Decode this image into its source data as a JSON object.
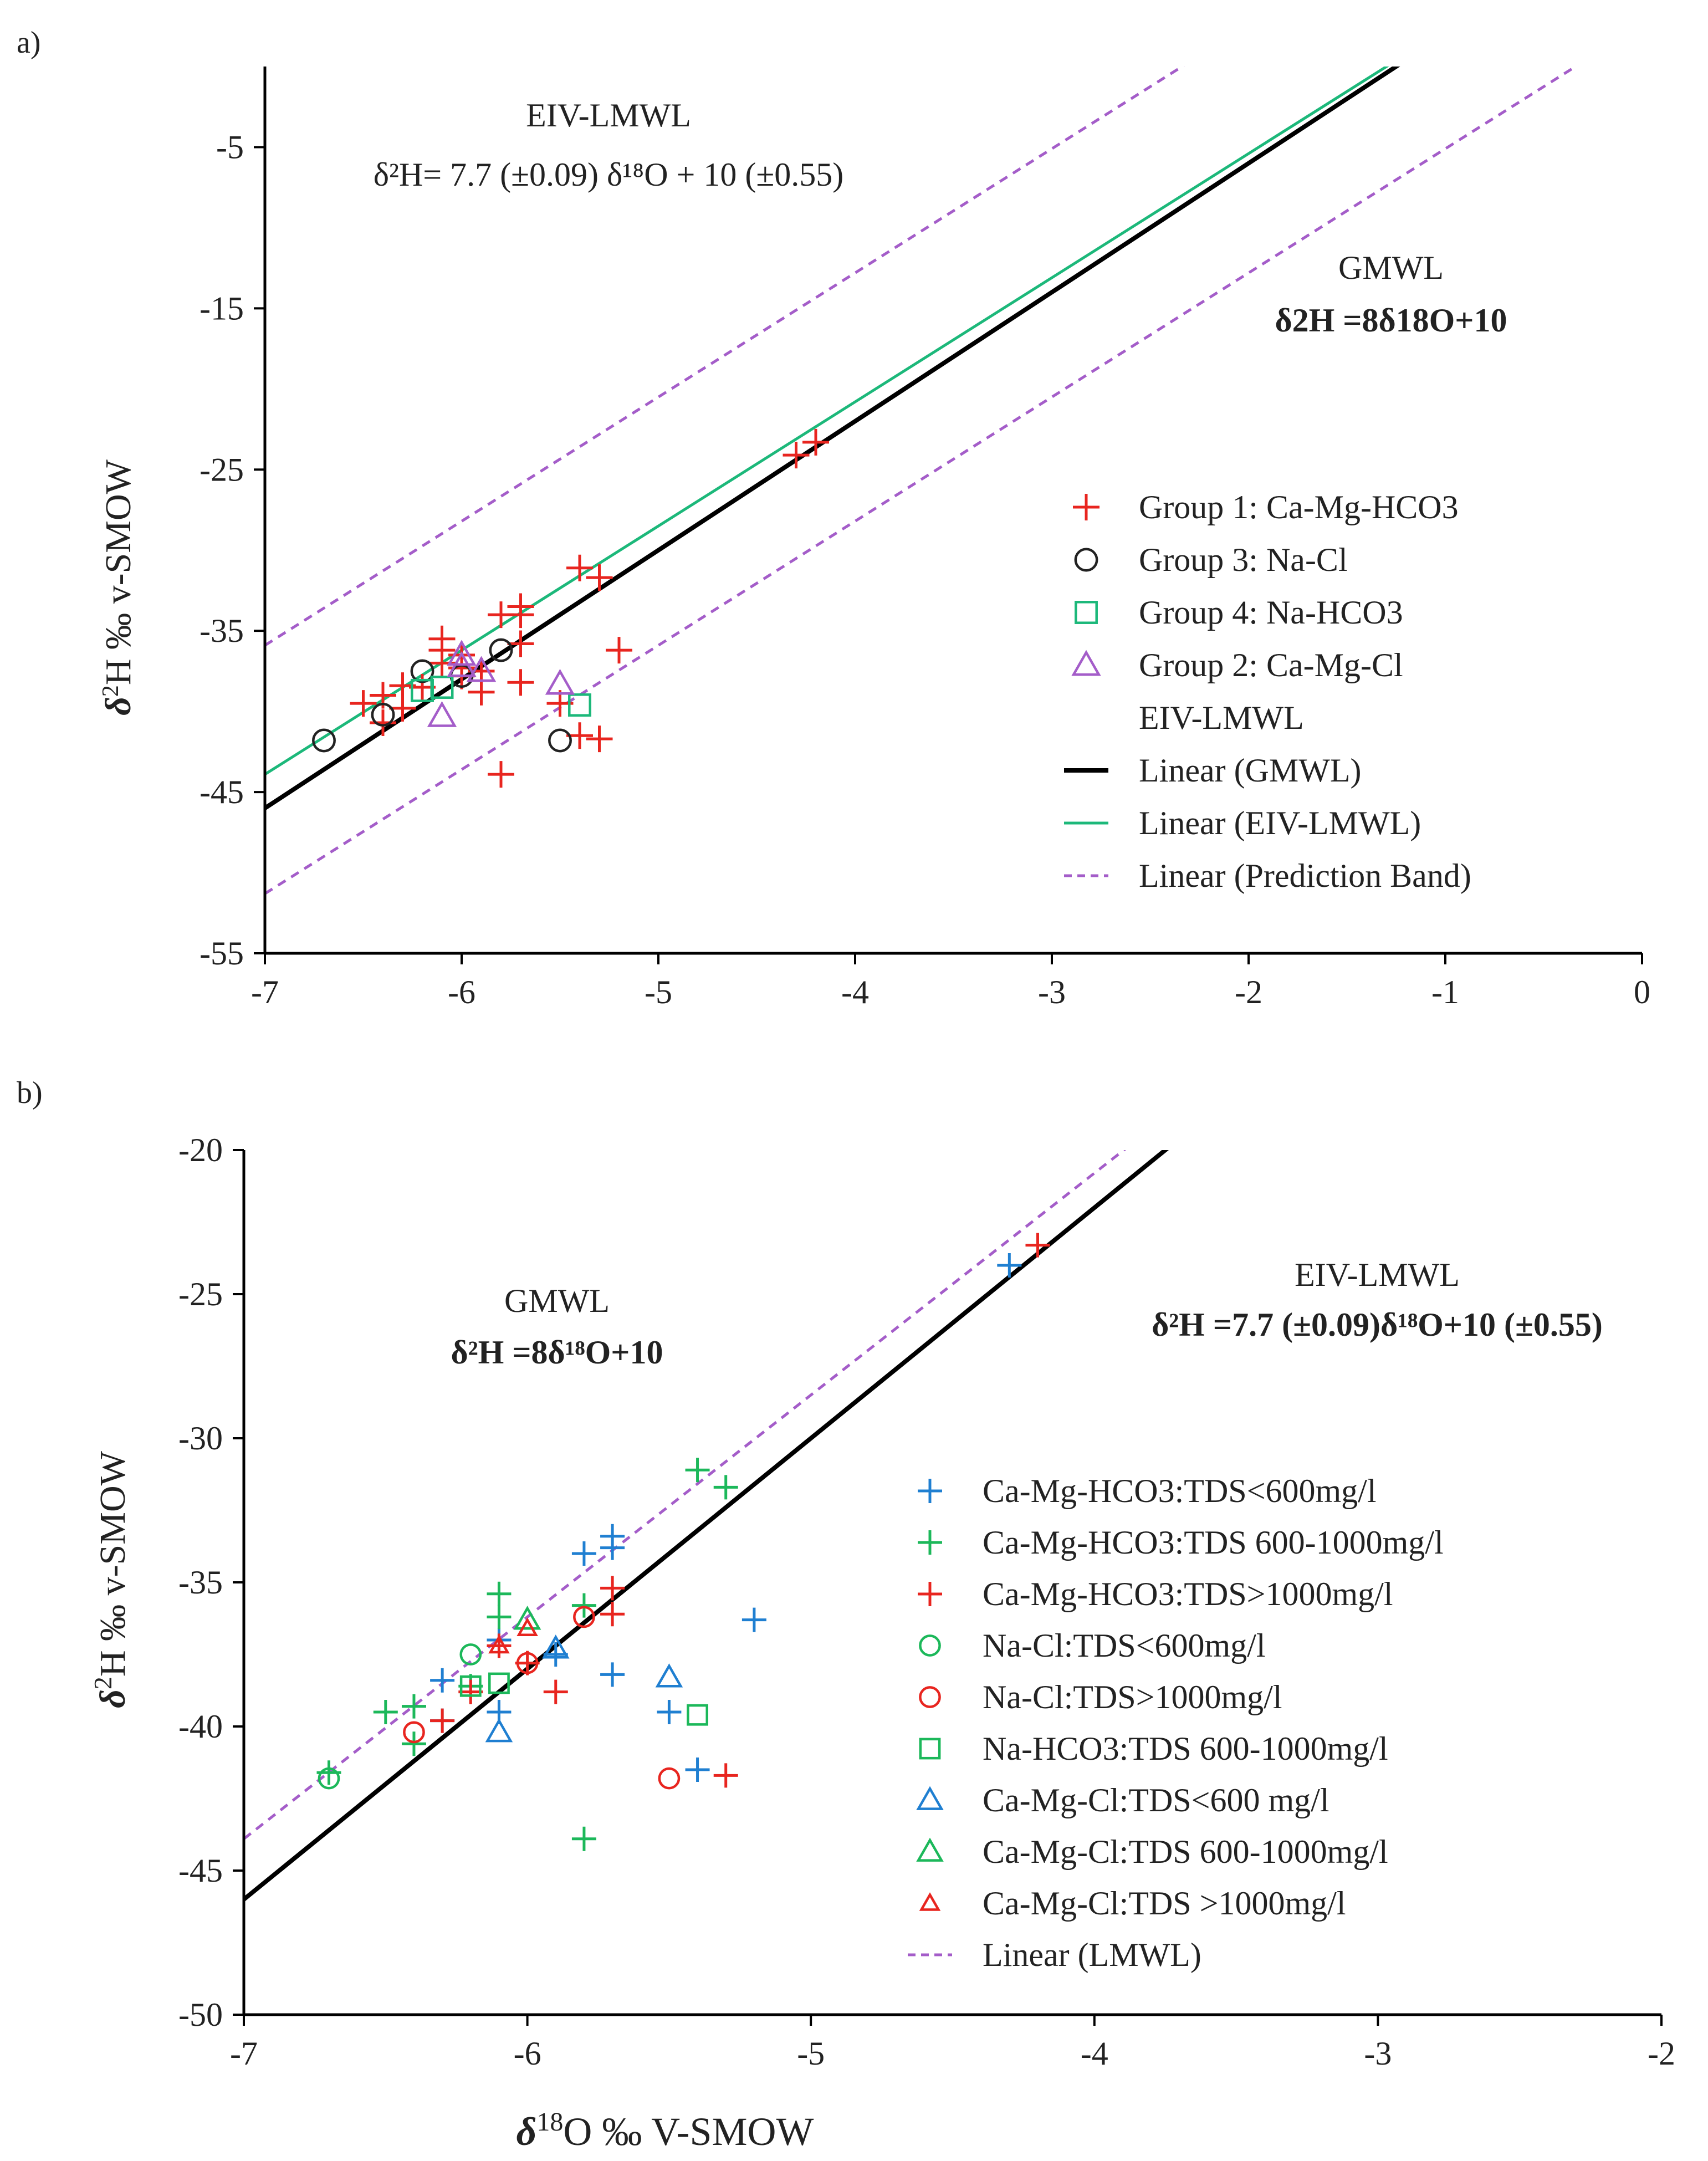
{
  "chart_data": [
    {
      "panel": "a)",
      "type": "scatter",
      "xlabel": "",
      "ylabel": "δ²H ‰ v-SMOW",
      "xlim": [
        -7,
        0
      ],
      "ylim": [
        -55,
        0
      ],
      "xticks": [
        -7,
        -6,
        -5,
        -4,
        -3,
        -2,
        -1,
        0
      ],
      "yticks": [
        -5,
        -15,
        -25,
        -35,
        -45,
        -55
      ],
      "annotations": [
        {
          "id": "eiv-title",
          "text": "EIV-LMWL"
        },
        {
          "id": "eiv-eq",
          "text": "δ²H= 7.7 (±0.09) δ¹⁸O + 10 (±0.55)"
        },
        {
          "id": "gmwl-title",
          "text": "GMWL"
        },
        {
          "id": "gmwl-eq",
          "text": "δ2H =8δ18O+10"
        }
      ],
      "lines": [
        {
          "name": "Linear  (GMWL)",
          "slope": 8,
          "intercept": 10,
          "color": "#000000",
          "style": "solid"
        },
        {
          "name": "Linear  (EIV-LMWL)",
          "slope": 7.7,
          "intercept": 10,
          "color": "#1cb87a",
          "style": "solid"
        },
        {
          "name": "Linear  (Prediction Band)",
          "slope": 7.7,
          "intercept": 18,
          "color": "#a45dc9",
          "style": "dashed"
        },
        {
          "name": "Linear  (Prediction Band)",
          "slope": 7.7,
          "intercept": 2.6,
          "color": "#a45dc9",
          "style": "dashed"
        }
      ],
      "legend": [
        {
          "label": "Group 1: Ca-Mg-HCO3",
          "marker": "plus",
          "color": "#e8251f"
        },
        {
          "label": "Group 3: Na-Cl",
          "marker": "circle",
          "color": "#222222"
        },
        {
          "label": "Group 4: Na-HCO3",
          "marker": "square",
          "color": "#1cb87a"
        },
        {
          "label": "Group 2: Ca-Mg-Cl",
          "marker": "triangle",
          "color": "#a45dc9"
        },
        {
          "label": "EIV-LMWL",
          "marker": "none",
          "color": "#222222"
        },
        {
          "label": "Linear  (GMWL)",
          "marker": "line",
          "color": "#000000"
        },
        {
          "label": "Linear  (EIV-LMWL)",
          "marker": "line",
          "color": "#1cb87a"
        },
        {
          "label": "Linear  (Prediction Band)",
          "marker": "dash",
          "color": "#a45dc9"
        }
      ],
      "series": [
        {
          "name": "Group 1: Ca-Mg-HCO3",
          "marker": "plus",
          "color": "#e8251f",
          "points": [
            [
              -4.3,
              -24.1
            ],
            [
              -4.2,
              -23.3
            ],
            [
              -5.4,
              -31.1
            ],
            [
              -5.3,
              -31.7
            ],
            [
              -5.8,
              -34.0
            ],
            [
              -5.7,
              -33.5
            ],
            [
              -5.7,
              -34.0
            ],
            [
              -6.1,
              -35.5
            ],
            [
              -6.1,
              -36.2
            ],
            [
              -6.0,
              -36.5
            ],
            [
              -5.7,
              -35.8
            ],
            [
              -5.2,
              -36.2
            ],
            [
              -6.1,
              -37.0
            ],
            [
              -6.0,
              -37.3
            ],
            [
              -5.9,
              -37.5
            ],
            [
              -6.2,
              -38.5
            ],
            [
              -5.9,
              -38.8
            ],
            [
              -6.3,
              -38.4
            ],
            [
              -6.4,
              -39.0
            ],
            [
              -5.7,
              -38.2
            ],
            [
              -6.5,
              -39.5
            ],
            [
              -6.3,
              -39.8
            ],
            [
              -6.4,
              -40.7
            ],
            [
              -5.5,
              -39.5
            ],
            [
              -5.4,
              -41.5
            ],
            [
              -5.3,
              -41.7
            ],
            [
              -5.8,
              -43.9
            ],
            [
              -6.0,
              -37.8
            ]
          ]
        },
        {
          "name": "Group 3: Na-Cl",
          "marker": "circle",
          "color": "#222222",
          "points": [
            [
              -6.7,
              -41.8
            ],
            [
              -6.4,
              -40.2
            ],
            [
              -6.2,
              -37.5
            ],
            [
              -5.8,
              -36.2
            ],
            [
              -6.0,
              -37.8
            ],
            [
              -5.5,
              -41.8
            ]
          ]
        },
        {
          "name": "Group 4: Na-HCO3",
          "marker": "square",
          "color": "#1cb87a",
          "points": [
            [
              -6.2,
              -38.7
            ],
            [
              -6.1,
              -38.5
            ],
            [
              -5.4,
              -39.6
            ]
          ]
        },
        {
          "name": "Group 2: Ca-Mg-Cl",
          "marker": "triangle",
          "color": "#a45dc9",
          "points": [
            [
              -6.1,
              -40.3
            ],
            [
              -6.0,
              -36.5
            ],
            [
              -5.9,
              -37.5
            ],
            [
              -5.5,
              -38.3
            ],
            [
              -6.0,
              -37.2
            ]
          ]
        }
      ]
    },
    {
      "panel": "b)",
      "type": "scatter",
      "xlabel": "δ¹⁸O ‰ V-SMOW",
      "ylabel": "δ²H ‰ v-SMOW",
      "xlim": [
        -7,
        -2
      ],
      "ylim": [
        -50,
        -20
      ],
      "xticks": [
        -7,
        -6,
        -5,
        -4,
        -3,
        -2
      ],
      "yticks": [
        -20,
        -25,
        -30,
        -35,
        -40,
        -45,
        -50
      ],
      "annotations": [
        {
          "id": "gmwl-title",
          "text": "GMWL"
        },
        {
          "id": "gmwl-eq",
          "text": "δ²H =8δ¹⁸O+10"
        },
        {
          "id": "eiv-title",
          "text": "EIV-LMWL"
        },
        {
          "id": "eiv-eq",
          "text": "δ²H =7.7 (±0.09)δ¹⁸O+10 (±0.55)"
        }
      ],
      "lines": [
        {
          "name": "GMWL",
          "slope": 8,
          "intercept": 10,
          "color": "#000000",
          "style": "solid"
        },
        {
          "name": "Linear  (LMWL)",
          "slope": 7.7,
          "intercept": 10,
          "color": "#a45dc9",
          "style": "dashed"
        }
      ],
      "legend": [
        {
          "label": "Ca-Mg-HCO3:TDS<600mg/l",
          "marker": "plus",
          "color": "#1f7fd1"
        },
        {
          "label": "Ca-Mg-HCO3:TDS 600-1000mg/l",
          "marker": "plus",
          "color": "#1cb85a"
        },
        {
          "label": "Ca-Mg-HCO3:TDS>1000mg/l",
          "marker": "plus",
          "color": "#e8251f"
        },
        {
          "label": "Na-Cl:TDS<600mg/l",
          "marker": "circle",
          "color": "#1cb85a"
        },
        {
          "label": "Na-Cl:TDS>1000mg/l",
          "marker": "circle",
          "color": "#e8251f"
        },
        {
          "label": "Na-HCO3:TDS 600-1000mg/l",
          "marker": "square",
          "color": "#1cb85a"
        },
        {
          "label": "Ca-Mg-Cl:TDS<600 mg/l",
          "marker": "triangle",
          "color": "#1f7fd1"
        },
        {
          "label": "Ca-Mg-Cl:TDS 600-1000mg/l",
          "marker": "triangle",
          "color": "#1cb85a"
        },
        {
          "label": "Ca-Mg-Cl:TDS >1000mg/l",
          "marker": "triangle-small",
          "color": "#e8251f"
        },
        {
          "label": "Linear  (LMWL)",
          "marker": "dash",
          "color": "#a45dc9"
        }
      ],
      "series": [
        {
          "name": "Ca-Mg-HCO3:TDS<600mg/l",
          "marker": "plus",
          "color": "#1f7fd1",
          "points": [
            [
              -4.3,
              -24.0
            ],
            [
              -5.7,
              -33.4
            ],
            [
              -5.7,
              -33.8
            ],
            [
              -5.8,
              -34.0
            ],
            [
              -5.2,
              -36.3
            ],
            [
              -6.1,
              -37.0
            ],
            [
              -5.9,
              -37.5
            ],
            [
              -6.3,
              -38.4
            ],
            [
              -5.7,
              -38.2
            ],
            [
              -6.1,
              -39.5
            ],
            [
              -6.3,
              -39.8
            ],
            [
              -5.5,
              -39.5
            ],
            [
              -5.4,
              -41.5
            ]
          ]
        },
        {
          "name": "Ca-Mg-HCO3:TDS 600-1000mg/l",
          "marker": "plus",
          "color": "#1cb85a",
          "points": [
            [
              -5.4,
              -31.1
            ],
            [
              -5.3,
              -31.7
            ],
            [
              -6.1,
              -35.4
            ],
            [
              -6.1,
              -36.2
            ],
            [
              -5.8,
              -35.8
            ],
            [
              -6.2,
              -38.6
            ],
            [
              -6.5,
              -39.5
            ],
            [
              -6.4,
              -39.3
            ],
            [
              -6.4,
              -40.6
            ],
            [
              -6.7,
              -41.6
            ],
            [
              -5.8,
              -43.9
            ]
          ]
        },
        {
          "name": "Ca-Mg-HCO3:TDS>1000mg/l",
          "marker": "plus",
          "color": "#e8251f",
          "points": [
            [
              -4.2,
              -23.3
            ],
            [
              -5.7,
              -35.2
            ],
            [
              -5.7,
              -36.1
            ],
            [
              -6.1,
              -37.2
            ],
            [
              -6.0,
              -37.8
            ],
            [
              -5.9,
              -38.8
            ],
            [
              -6.2,
              -38.8
            ],
            [
              -6.3,
              -39.8
            ],
            [
              -5.3,
              -41.7
            ]
          ]
        },
        {
          "name": "Na-Cl:TDS<600mg/l",
          "marker": "circle",
          "color": "#1cb85a",
          "points": [
            [
              -6.2,
              -37.5
            ],
            [
              -6.7,
              -41.8
            ]
          ]
        },
        {
          "name": "Na-Cl:TDS>1000mg/l",
          "marker": "circle",
          "color": "#e8251f",
          "points": [
            [
              -5.8,
              -36.2
            ],
            [
              -6.0,
              -37.8
            ],
            [
              -6.4,
              -40.2
            ],
            [
              -5.5,
              -41.8
            ]
          ]
        },
        {
          "name": "Na-HCO3:TDS 600-1000mg/l",
          "marker": "square",
          "color": "#1cb85a",
          "points": [
            [
              -6.2,
              -38.6
            ],
            [
              -6.1,
              -38.5
            ],
            [
              -5.4,
              -39.6
            ]
          ]
        },
        {
          "name": "Ca-Mg-Cl:TDS<600 mg/l",
          "marker": "triangle",
          "color": "#1f7fd1",
          "points": [
            [
              -6.1,
              -40.2
            ],
            [
              -5.5,
              -38.3
            ],
            [
              -5.9,
              -37.3
            ]
          ]
        },
        {
          "name": "Ca-Mg-Cl:TDS 600-1000mg/l",
          "marker": "triangle",
          "color": "#1cb85a",
          "points": [
            [
              -6.0,
              -36.3
            ]
          ]
        },
        {
          "name": "Ca-Mg-Cl:TDS >1000mg/l",
          "marker": "triangle-small",
          "color": "#e8251f",
          "points": [
            [
              -6.0,
              -36.6
            ],
            [
              -6.1,
              -37.2
            ]
          ]
        }
      ]
    }
  ]
}
